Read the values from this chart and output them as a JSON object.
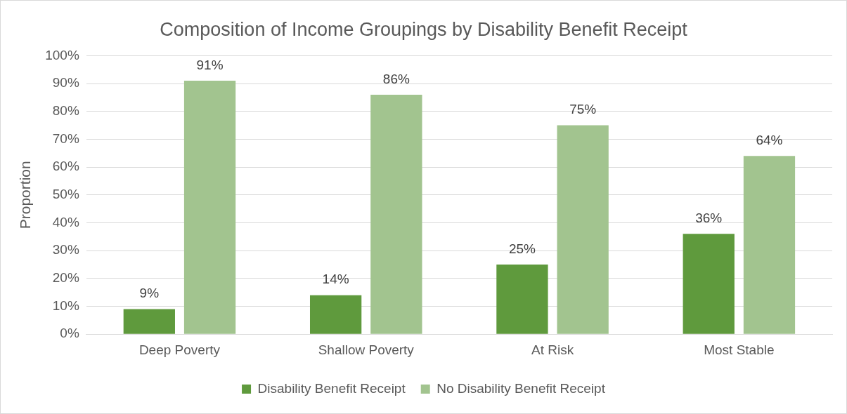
{
  "chart_data": {
    "type": "bar",
    "title": "Composition of Income Groupings by Disability Benefit Receipt",
    "ylabel": "Proportion",
    "categories": [
      "Deep Poverty",
      "Shallow Poverty",
      "At Risk",
      "Most Stable"
    ],
    "series": [
      {
        "name": "Disability Benefit Receipt",
        "color": "#5f9a3d",
        "values": [
          9,
          14,
          25,
          36
        ],
        "value_labels": [
          "9%",
          "14%",
          "25%",
          "36%"
        ]
      },
      {
        "name": "No Disability Benefit Receipt",
        "color": "#a2c48f",
        "values": [
          91,
          86,
          75,
          64
        ],
        "value_labels": [
          "91%",
          "86%",
          "75%",
          "64%"
        ]
      }
    ],
    "ylim": [
      0,
      100
    ],
    "yticks": [
      {
        "value": 0,
        "label": "0%"
      },
      {
        "value": 10,
        "label": "10%"
      },
      {
        "value": 20,
        "label": "20%"
      },
      {
        "value": 30,
        "label": "30%"
      },
      {
        "value": 40,
        "label": "40%"
      },
      {
        "value": 50,
        "label": "50%"
      },
      {
        "value": 60,
        "label": "60%"
      },
      {
        "value": 70,
        "label": "70%"
      },
      {
        "value": 80,
        "label": "80%"
      },
      {
        "value": 90,
        "label": "90%"
      },
      {
        "value": 100,
        "label": "100%"
      }
    ],
    "grid": "y",
    "legend": "bottom"
  }
}
